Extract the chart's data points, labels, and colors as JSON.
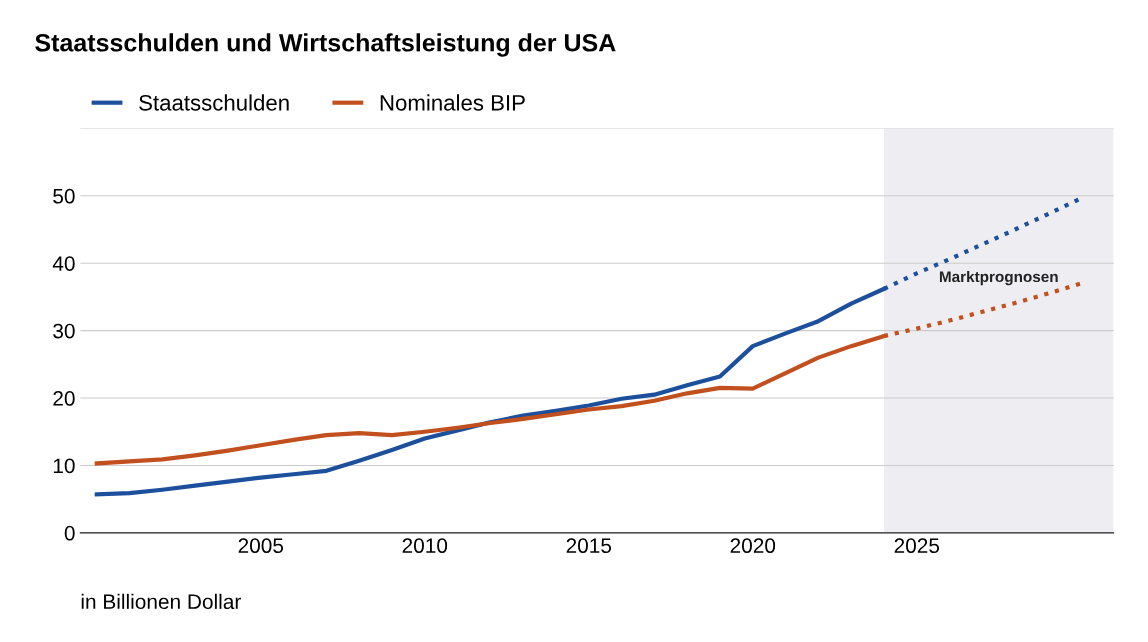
{
  "chart_data": {
    "type": "line",
    "title": "Staatsschulden und Wirtschaftsleistung der USA",
    "xlim": [
      1999.5,
      2031
    ],
    "xticks": [
      2005,
      2010,
      2015,
      2020,
      2025
    ],
    "ylim": [
      0,
      60
    ],
    "yticks": [
      0,
      10,
      20,
      30,
      40,
      50,
      {
        "value": 60,
        "label": null
      }
    ],
    "grid": "y",
    "legend": "top left",
    "marker": "none",
    "series": [
      {
        "name": "Staatsschulden",
        "color": "#1c4f9c",
        "line_style": "solid",
        "x": [
          2000,
          2001,
          2002,
          2003,
          2004,
          2005,
          2006,
          2007,
          2008,
          2009,
          2010,
          2011,
          2012,
          2013,
          2014,
          2015,
          2016,
          2017,
          2018,
          2019,
          2020,
          2021,
          2022,
          2023,
          2024
        ],
        "values": [
          5.7,
          5.9,
          6.4,
          7.0,
          7.6,
          8.2,
          8.7,
          9.2,
          10.7,
          12.3,
          14.0,
          15.2,
          16.4,
          17.4,
          18.1,
          18.9,
          19.9,
          20.5,
          21.9,
          23.2,
          27.7,
          29.6,
          31.4,
          34.0,
          36.2
        ]
      },
      {
        "name": "Nominales BIP",
        "color": "#c2501e",
        "line_style": "solid",
        "x": [
          2000,
          2001,
          2002,
          2003,
          2004,
          2005,
          2006,
          2007,
          2008,
          2009,
          2010,
          2011,
          2012,
          2013,
          2014,
          2015,
          2016,
          2017,
          2018,
          2019,
          2020,
          2021,
          2022,
          2023,
          2024
        ],
        "values": [
          10.3,
          10.6,
          10.9,
          11.5,
          12.2,
          13.0,
          13.8,
          14.5,
          14.8,
          14.5,
          15.0,
          15.6,
          16.3,
          16.9,
          17.6,
          18.3,
          18.8,
          19.6,
          20.7,
          21.5,
          21.4,
          23.7,
          26.0,
          27.7,
          29.2
        ]
      },
      {
        "color": "#1c4f9c",
        "line_style": "dotted",
        "x": [
          2024,
          2025,
          2026,
          2027,
          2028,
          2029,
          2030
        ],
        "values": [
          36.2,
          38.5,
          40.6,
          42.8,
          45.0,
          47.3,
          49.6
        ]
      },
      {
        "color": "#c2501e",
        "line_style": "dotted",
        "x": [
          2024,
          2025,
          2026,
          2027,
          2028,
          2029,
          2030
        ],
        "values": [
          29.2,
          30.3,
          31.5,
          32.8,
          34.1,
          35.5,
          37.0
        ]
      }
    ],
    "bands": [
      {
        "axis": "x",
        "from": 2024,
        "to": 2031,
        "label": "Marktprognosen",
        "color": "#eeeef2"
      }
    ],
    "annotations": [
      "in Billionen Dollar"
    ]
  }
}
